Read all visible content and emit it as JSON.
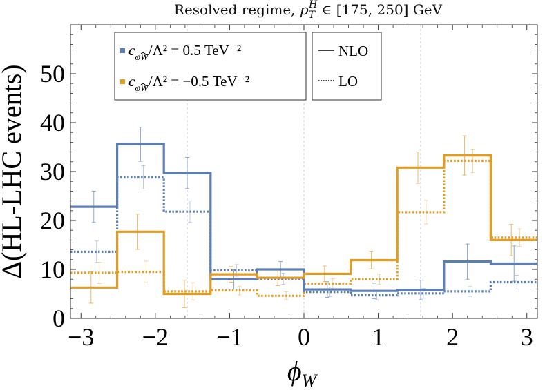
{
  "chart_data": {
    "type": "line",
    "title": "Resolved regime, p_T^H ∈ [175, 250] GeV",
    "title_parts": {
      "prefix": "Resolved regime, ",
      "var": "p",
      "var_sub": "T",
      "var_sup": "H",
      "range": " ∈ [175, 250] GeV"
    },
    "xlabel": "ϕ",
    "xlabel_sub": "W",
    "ylabel": "Δ(HL-LHC events)",
    "xlim": [
      -3.14159,
      3.14159
    ],
    "ylim": [
      0,
      60
    ],
    "xticks": [
      -3,
      -2,
      -1,
      0,
      1,
      2,
      3
    ],
    "xtick_labels": [
      "−3",
      "−2",
      "−1",
      "0",
      "1",
      "2",
      "3"
    ],
    "yticks": [
      0,
      10,
      20,
      30,
      40,
      50
    ],
    "ytick_labels": [
      "0",
      "10",
      "20",
      "30",
      "40",
      "50"
    ],
    "bin_edges": [
      -3.14159,
      -2.51327,
      -1.88496,
      -1.25664,
      -0.62832,
      0,
      0.62832,
      1.25664,
      1.88496,
      2.51327,
      3.14159
    ],
    "vertical_guides": [
      -1.5708,
      0,
      1.5708
    ],
    "series": [
      {
        "name": "c_φW̃/Λ² = 0.5 TeV⁻²",
        "order": "NLO",
        "color": "#5b7fb5",
        "style": "solid",
        "values": [
          22.8,
          35.6,
          29.7,
          8.0,
          10.0,
          5.9,
          5.6,
          5.8,
          11.6,
          11.2
        ],
        "errors": [
          3.2,
          3.5,
          3.2,
          2.0,
          1.6,
          1.6,
          1.6,
          2.0,
          3.6,
          3.6
        ]
      },
      {
        "name": "c_φW̃/Λ² = 0.5 TeV⁻²",
        "order": "LO",
        "color": "#5b7fb5",
        "style": "dotted",
        "values": [
          13.6,
          28.8,
          21.8,
          9.8,
          8.1,
          5.4,
          4.7,
          5.1,
          5.5,
          7.4
        ],
        "errors": [
          2.2,
          2.4,
          2.2,
          1.2,
          1.1,
          1.0,
          0.9,
          1.0,
          1.0,
          1.4
        ]
      },
      {
        "name": "c_φW̃/Λ² = −0.5 TeV⁻²",
        "order": "NLO",
        "color": "#e19c24",
        "style": "solid",
        "values": [
          6.3,
          17.7,
          5.0,
          9.0,
          8.3,
          9.1,
          11.9,
          30.8,
          33.3,
          16.0
        ],
        "errors": [
          3.2,
          3.6,
          2.8,
          1.6,
          1.6,
          1.6,
          1.8,
          3.2,
          4.0,
          3.2
        ]
      },
      {
        "name": "c_φW̃/Λ² = −0.5 TeV⁻²",
        "order": "LO",
        "color": "#e19c24",
        "style": "dotted",
        "values": [
          9.3,
          9.5,
          5.5,
          5.7,
          4.6,
          7.1,
          8.0,
          21.7,
          32.2,
          16.5
        ],
        "errors": [
          2.2,
          2.2,
          1.8,
          0.9,
          0.8,
          1.0,
          1.0,
          2.4,
          2.4,
          1.8
        ]
      }
    ],
    "legend": {
      "position": "top-left",
      "couplings": [
        {
          "label_c": "c",
          "label_sub": "φ",
          "label_sub_w": "W",
          "label_rest": "/Λ² = 0.5 TeV⁻²",
          "color": "#5b7fb5"
        },
        {
          "label_c": "c",
          "label_sub": "φ",
          "label_sub_w": "W",
          "label_rest": "/Λ² = −0.5 TeV⁻²",
          "color": "#e19c24"
        }
      ],
      "orders": [
        {
          "label": "NLO",
          "style": "solid"
        },
        {
          "label": "LO",
          "style": "dotted"
        }
      ]
    },
    "grid": false
  }
}
